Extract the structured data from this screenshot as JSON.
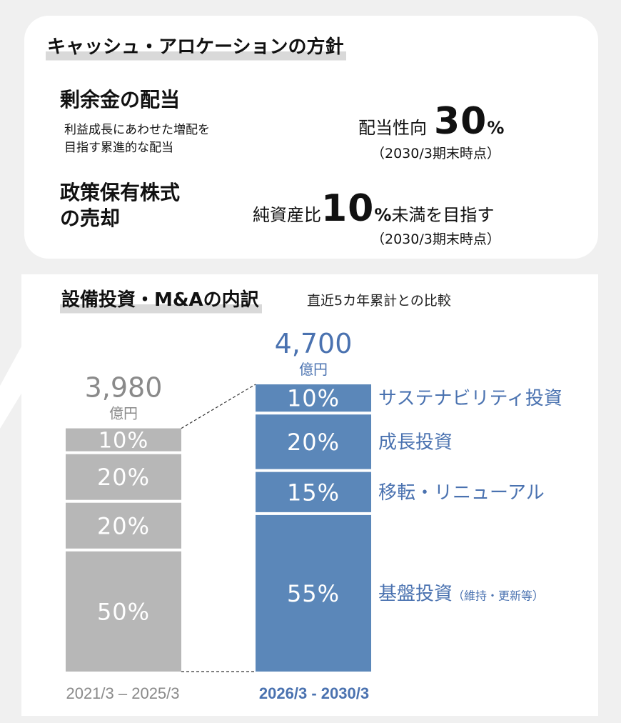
{
  "policy": {
    "heading": "キャッシュ・アロケーションの方針",
    "dividend": {
      "title": "剰余金の配当",
      "description_lines": [
        "利益成長にあわせた増配を",
        "目指す累進的な配当"
      ],
      "label": "配当性向",
      "value": "30",
      "unit": "%",
      "note": "（2030/3期末時点）"
    },
    "holdings": {
      "title_lines": [
        "政策保有株式",
        "の売却"
      ],
      "label": "純資産比",
      "value": "10",
      "unit": "%",
      "suffix": "未満を目指す",
      "note": "（2030/3期末時点）"
    }
  },
  "breakdown": {
    "heading": "設備投資・M&Aの内訳",
    "subtitle": "直近5カ年累計との比較"
  },
  "chart_data": {
    "type": "bar",
    "stacked": true,
    "categories": [
      "2021/3 – 2025/3",
      "2026/3 - 2030/3"
    ],
    "totals": [
      {
        "value": "3,980",
        "unit": "億円"
      },
      {
        "value": "4,700",
        "unit": "億円"
      }
    ],
    "series": [
      {
        "name": "基盤投資",
        "name_note": "（維持・更新等）",
        "values": [
          50,
          55
        ]
      },
      {
        "name": "移転・リニューアル",
        "values": [
          20,
          15
        ]
      },
      {
        "name": "成長投資",
        "values": [
          20,
          20
        ]
      },
      {
        "name": "サステナビリティ投資",
        "values": [
          10,
          10
        ]
      }
    ],
    "segment_labels": [
      [
        "50%",
        "20%",
        "20%",
        "10%"
      ],
      [
        "55%",
        "15%",
        "20%",
        "10%"
      ]
    ],
    "colors": {
      "previous": "#b7b7b7",
      "plan": "#5b87b9",
      "previous_label": "#8a8a8a",
      "plan_label": "#4a72b0",
      "series_label": "#4a72b0"
    }
  }
}
